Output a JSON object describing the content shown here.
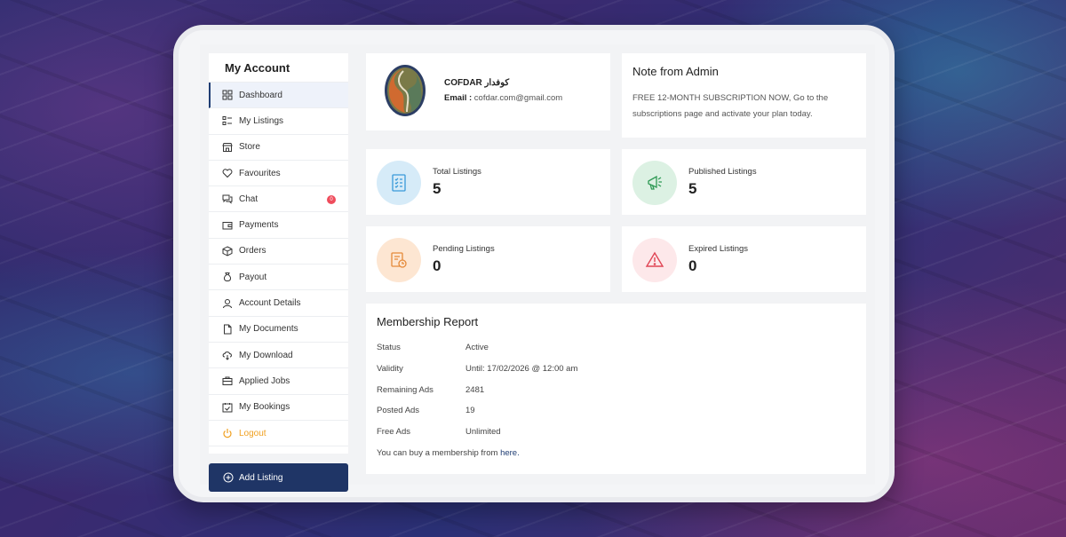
{
  "sidebar": {
    "title": "My Account",
    "items": [
      {
        "label": "Dashboard",
        "icon": "dashboard-icon"
      },
      {
        "label": "My Listings",
        "icon": "list-icon"
      },
      {
        "label": "Store",
        "icon": "store-icon"
      },
      {
        "label": "Favourites",
        "icon": "heart-icon"
      },
      {
        "label": "Chat",
        "icon": "chat-icon",
        "badge": "0"
      },
      {
        "label": "Payments",
        "icon": "wallet-icon"
      },
      {
        "label": "Orders",
        "icon": "box-icon"
      },
      {
        "label": "Payout",
        "icon": "money-bag-icon"
      },
      {
        "label": "Account Details",
        "icon": "user-icon"
      },
      {
        "label": "My Documents",
        "icon": "document-icon"
      },
      {
        "label": "My Download",
        "icon": "cloud-download-icon"
      },
      {
        "label": "Applied Jobs",
        "icon": "briefcase-icon"
      },
      {
        "label": "My Bookings",
        "icon": "calendar-check-icon"
      },
      {
        "label": "Logout",
        "icon": "power-icon"
      }
    ],
    "add_listing_label": "Add Listing"
  },
  "profile": {
    "name": "COFDAR كوفدار",
    "email_label": "Email :",
    "email": "cofdar.com@gmail.com"
  },
  "note": {
    "title": "Note from Admin",
    "text": "FREE 12-MONTH SUBSCRIPTION NOW, Go to the subscriptions page and activate your plan today."
  },
  "stats": {
    "total": {
      "label": "Total Listings",
      "value": "5"
    },
    "published": {
      "label": "Published Listings",
      "value": "5"
    },
    "pending": {
      "label": "Pending Listings",
      "value": "0"
    },
    "expired": {
      "label": "Expired Listings",
      "value": "0"
    }
  },
  "membership": {
    "title": "Membership Report",
    "rows": [
      {
        "key": "Status",
        "value": "Active"
      },
      {
        "key": "Validity",
        "value": "Until: 17/02/2026 @ 12:00 am"
      },
      {
        "key": "Remaining Ads",
        "value": "2481"
      },
      {
        "key": "Posted Ads",
        "value": "19"
      },
      {
        "key": "Free Ads",
        "value": "Unlimited"
      }
    ],
    "footer_text": "You can buy a membership from ",
    "footer_link": "here."
  },
  "colors": {
    "primary": "#1f3566",
    "logout": "#f0a020",
    "badge": "#ef4c5c"
  }
}
